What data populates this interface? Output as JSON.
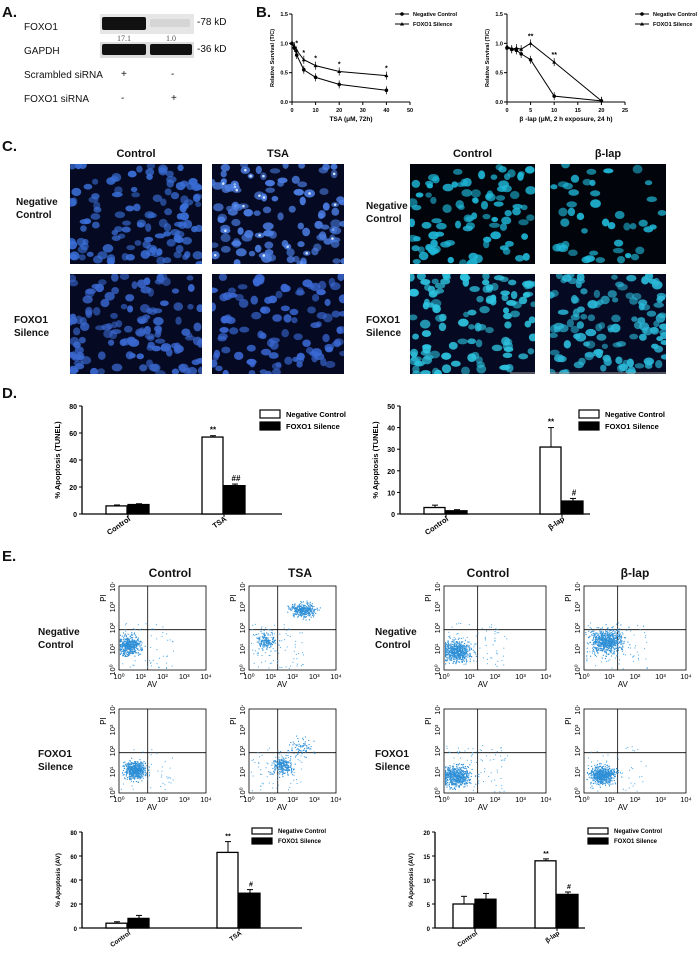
{
  "panels": {
    "A": "A.",
    "B": "B.",
    "C": "C.",
    "D": "D.",
    "E": "E."
  },
  "western": {
    "rows": [
      "FOXO1",
      "GAPDH",
      "Scrambled siRNA",
      "FOXO1 siRNA"
    ],
    "kd": [
      "-78 kD",
      "-36 kD"
    ],
    "quant": [
      "17.1",
      "1.0"
    ],
    "scrambled": [
      "+",
      "-"
    ],
    "foxo1_sirna": [
      "-",
      "+"
    ],
    "foxo1_band_level": [
      1.0,
      0.06
    ]
  },
  "legend": {
    "neg": "Negative Control",
    "fox": "FOXO1 Silence"
  },
  "microscopy": {
    "left_cols": [
      "Control",
      "TSA"
    ],
    "right_cols": [
      "Control",
      "β-lap"
    ],
    "rows": [
      [
        "Negative",
        "Control"
      ],
      [
        "FOXO1",
        "Silence"
      ]
    ]
  },
  "flow_headers": {
    "left": [
      "Control",
      "TSA"
    ],
    "right": [
      "Control",
      "β-lap"
    ]
  },
  "flow_axis": {
    "x": "AV",
    "y": "PI",
    "ticks": [
      "10⁰",
      "10¹",
      "10²",
      "10³",
      "10⁴"
    ]
  },
  "chart_data": [
    {
      "type": "line",
      "id": "B-TSA",
      "xlabel": "TSA (μM, 72h)",
      "ylabel": "Relative Survival (T/C)",
      "xlim": [
        0,
        50
      ],
      "ylim": [
        0,
        1.5
      ],
      "xticks": [
        0,
        10,
        20,
        30,
        40,
        50
      ],
      "yticks": [
        0,
        0.5,
        1.0,
        1.5
      ],
      "series": [
        {
          "name": "Negative Control",
          "x": [
            0,
            1,
            2,
            5,
            10,
            20,
            40
          ],
          "y": [
            1.0,
            0.92,
            0.8,
            0.55,
            0.42,
            0.3,
            0.2
          ]
        },
        {
          "name": "FOXO1 Silence",
          "x": [
            0,
            1,
            2,
            5,
            10,
            20,
            40
          ],
          "y": [
            1.0,
            0.95,
            0.88,
            0.72,
            0.62,
            0.52,
            0.45
          ]
        }
      ],
      "annotations": [
        "*",
        "*",
        "*",
        "*",
        "*"
      ]
    },
    {
      "type": "line",
      "id": "B-blap",
      "xlabel": "β -lap (μM, 2 h exposure, 24 h)",
      "ylabel": "Relative Survival (T/C)",
      "xlim": [
        0,
        25
      ],
      "ylim": [
        0,
        1.5
      ],
      "xticks": [
        0,
        5,
        10,
        15,
        20,
        25
      ],
      "yticks": [
        0,
        0.5,
        1.0,
        1.5
      ],
      "series": [
        {
          "name": "Negative Control",
          "x": [
            0,
            1,
            2,
            3,
            5,
            10,
            20
          ],
          "y": [
            0.92,
            0.9,
            0.88,
            0.82,
            0.72,
            0.1,
            0.02
          ]
        },
        {
          "name": "FOXO1 Silence",
          "x": [
            0,
            1,
            2,
            3,
            5,
            10,
            20
          ],
          "y": [
            0.95,
            0.9,
            0.92,
            0.9,
            1.0,
            0.68,
            0.02
          ]
        }
      ],
      "annotations": [
        "**",
        "**"
      ]
    },
    {
      "type": "bar",
      "id": "D-TSA",
      "ylabel": "% Apoptosis (TUNEL)",
      "categories": [
        "Control",
        "TSA"
      ],
      "ylim": [
        0,
        80
      ],
      "yticks": [
        0,
        20,
        40,
        60,
        80
      ],
      "series": [
        {
          "name": "Negative Control",
          "values": [
            6,
            57
          ]
        },
        {
          "name": "FOXO1 Silence",
          "values": [
            7,
            21
          ]
        }
      ],
      "annotations": [
        "**",
        "##"
      ]
    },
    {
      "type": "bar",
      "id": "D-blap",
      "ylabel": "% Apoptosis (TUNEL)",
      "categories": [
        "Control",
        "β-lap"
      ],
      "ylim": [
        0,
        50
      ],
      "yticks": [
        0,
        10,
        20,
        30,
        40,
        50
      ],
      "series": [
        {
          "name": "Negative Control",
          "values": [
            3,
            31
          ]
        },
        {
          "name": "FOXO1 Silence",
          "values": [
            1.5,
            6
          ]
        }
      ],
      "annotations": [
        "**",
        "#"
      ]
    },
    {
      "type": "bar",
      "id": "E-TSA",
      "ylabel": "% Apoptosis (AV)",
      "categories": [
        "Control",
        "TSA"
      ],
      "ylim": [
        0,
        80
      ],
      "yticks": [
        0,
        20,
        40,
        60,
        80
      ],
      "series": [
        {
          "name": "Negative Control",
          "values": [
            4,
            63
          ]
        },
        {
          "name": "FOXO1 Silence",
          "values": [
            8,
            29
          ]
        }
      ],
      "annotations": [
        "**",
        "#"
      ]
    },
    {
      "type": "bar",
      "id": "E-blap",
      "ylabel": "% Apoptosis (AV)",
      "categories": [
        "Control",
        "β-lap"
      ],
      "ylim": [
        0,
        20
      ],
      "yticks": [
        0,
        5,
        10,
        15,
        20
      ],
      "series": [
        {
          "name": "Negative Control",
          "values": [
            5,
            14
          ]
        },
        {
          "name": "FOXO1 Silence",
          "values": [
            6,
            7
          ]
        }
      ],
      "annotations": [
        "**",
        "#"
      ]
    }
  ]
}
